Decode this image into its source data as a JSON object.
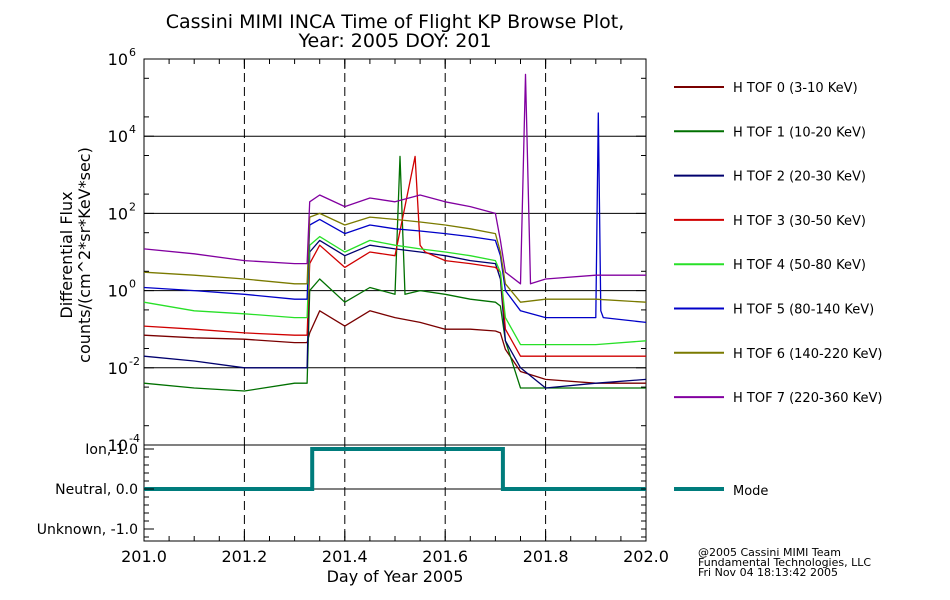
{
  "chart_data": [
    {
      "type": "line",
      "title": "Cassini MIMI INCA Time of Flight KP Browse Plot,",
      "subtitle": "Year: 2005 DOY: 201",
      "ylabel_line1": "Differential Flux",
      "ylabel_line2": "counts/(cm^2*sr*KeV*sec)",
      "yscale": "log",
      "ylim": [
        0.0001,
        1000000
      ],
      "ytick_exponents": [
        "6",
        "4",
        "2",
        "0",
        "-2",
        "-4"
      ],
      "ytick_base": "10",
      "xlim": [
        201.0,
        202.0
      ],
      "grid": "dashed verticals at 201.2, 201.4, 201.6, 201.8; solid horizontals at each decade",
      "series": [
        {
          "name": "H TOF 0 (3-10 KeV)",
          "color": "#7a0000",
          "x": [
            201.0,
            201.1,
            201.2,
            201.3,
            201.325,
            201.33,
            201.35,
            201.4,
            201.45,
            201.5,
            201.55,
            201.6,
            201.65,
            201.7,
            201.71,
            201.72,
            201.75,
            201.8,
            201.9,
            202.0
          ],
          "values": [
            0.07,
            0.06,
            0.055,
            0.045,
            0.045,
            0.08,
            0.3,
            0.12,
            0.3,
            0.2,
            0.15,
            0.1,
            0.1,
            0.09,
            0.08,
            0.03,
            0.008,
            0.005,
            0.004,
            0.004
          ]
        },
        {
          "name": "H TOF 1 (10-20 KeV)",
          "color": "#007000",
          "x": [
            201.0,
            201.1,
            201.2,
            201.3,
            201.325,
            201.33,
            201.35,
            201.4,
            201.45,
            201.5,
            201.51,
            201.52,
            201.55,
            201.6,
            201.65,
            201.7,
            201.71,
            201.72,
            201.75,
            201.8,
            201.9,
            202.0
          ],
          "values": [
            0.004,
            0.003,
            0.0025,
            0.004,
            0.004,
            1.0,
            2.0,
            0.5,
            1.2,
            0.8,
            3000,
            0.8,
            1.0,
            0.8,
            0.6,
            0.5,
            0.4,
            0.05,
            0.003,
            0.003,
            0.003,
            0.003
          ]
        },
        {
          "name": "H TOF 2 (20-30 KeV)",
          "color": "#00006e",
          "x": [
            201.0,
            201.1,
            201.2,
            201.3,
            201.325,
            201.33,
            201.35,
            201.4,
            201.45,
            201.5,
            201.55,
            201.6,
            201.65,
            201.7,
            201.71,
            201.72,
            201.75,
            201.8,
            201.9,
            202.0
          ],
          "values": [
            0.02,
            0.015,
            0.01,
            0.01,
            0.01,
            10,
            20,
            8,
            15,
            12,
            10,
            8,
            6,
            5,
            2,
            0.05,
            0.01,
            0.003,
            0.004,
            0.005
          ]
        },
        {
          "name": "H TOF 3 (30-50 KeV)",
          "color": "#d00000",
          "x": [
            201.0,
            201.1,
            201.2,
            201.3,
            201.325,
            201.33,
            201.35,
            201.4,
            201.45,
            201.5,
            201.54,
            201.55,
            201.56,
            201.6,
            201.65,
            201.7,
            201.71,
            201.72,
            201.75,
            201.8,
            201.9,
            202.0
          ],
          "values": [
            0.12,
            0.1,
            0.08,
            0.07,
            0.07,
            5,
            15,
            4,
            10,
            8,
            3000,
            15,
            10,
            6,
            5,
            4,
            3,
            0.1,
            0.02,
            0.02,
            0.02,
            0.02
          ]
        },
        {
          "name": "H TOF 4 (50-80 KeV)",
          "color": "#28e028",
          "x": [
            201.0,
            201.1,
            201.2,
            201.3,
            201.325,
            201.33,
            201.35,
            201.4,
            201.45,
            201.5,
            201.55,
            201.6,
            201.65,
            201.7,
            201.71,
            201.72,
            201.75,
            201.8,
            201.9,
            202.0
          ],
          "values": [
            0.5,
            0.3,
            0.25,
            0.2,
            0.2,
            15,
            25,
            10,
            20,
            15,
            12,
            10,
            8,
            6,
            3,
            0.2,
            0.04,
            0.04,
            0.04,
            0.05
          ]
        },
        {
          "name": "H TOF 5 (80-140 KeV)",
          "color": "#0000c8",
          "x": [
            201.0,
            201.1,
            201.2,
            201.3,
            201.325,
            201.33,
            201.35,
            201.4,
            201.45,
            201.5,
            201.55,
            201.6,
            201.65,
            201.7,
            201.71,
            201.72,
            201.75,
            201.8,
            201.9,
            201.905,
            201.91,
            201.915,
            202.0
          ],
          "values": [
            1.2,
            1.0,
            0.8,
            0.6,
            0.6,
            50,
            70,
            30,
            50,
            40,
            35,
            30,
            25,
            20,
            8,
            1.0,
            0.3,
            0.2,
            0.2,
            40000,
            0.3,
            0.2,
            0.15
          ]
        },
        {
          "name": "H TOF 6 (140-220 KeV)",
          "color": "#7a7a00",
          "x": [
            201.0,
            201.1,
            201.2,
            201.3,
            201.325,
            201.33,
            201.35,
            201.4,
            201.45,
            201.5,
            201.55,
            201.6,
            201.65,
            201.7,
            201.71,
            201.72,
            201.75,
            201.8,
            201.9,
            202.0
          ],
          "values": [
            3,
            2.5,
            2,
            1.5,
            1.5,
            80,
            100,
            50,
            80,
            70,
            60,
            50,
            40,
            30,
            10,
            1.5,
            0.5,
            0.6,
            0.6,
            0.5
          ]
        },
        {
          "name": "H TOF 7 (220-360 KeV)",
          "color": "#8200a0",
          "x": [
            201.0,
            201.1,
            201.2,
            201.3,
            201.325,
            201.33,
            201.35,
            201.4,
            201.45,
            201.5,
            201.55,
            201.6,
            201.65,
            201.7,
            201.71,
            201.72,
            201.75,
            201.76,
            201.77,
            201.8,
            201.9,
            202.0
          ],
          "values": [
            12,
            9,
            6,
            5,
            5,
            200,
            300,
            150,
            250,
            200,
            300,
            200,
            150,
            100,
            20,
            3,
            1.5,
            400000,
            1.5,
            2,
            2.5,
            2.5
          ]
        }
      ]
    },
    {
      "type": "line",
      "yticks": [
        "Ion, 1.0",
        "Neutral, 0.0",
        "Unknown, -1.0"
      ],
      "ytick_values": [
        1.0,
        0.0,
        -1.0
      ],
      "ylim": [
        -1.3,
        1.1
      ],
      "xlabel": "Day of Year 2005",
      "xticks": [
        "201.0",
        "201.2",
        "201.4",
        "201.6",
        "201.8",
        "202.0"
      ],
      "xtick_values": [
        201.0,
        201.2,
        201.4,
        201.6,
        201.8,
        202.0
      ],
      "xlim": [
        201.0,
        202.0
      ],
      "series": [
        {
          "name": "Mode",
          "color": "#007c7c",
          "x": [
            201.0,
            201.335,
            201.335,
            201.715,
            201.715,
            202.0
          ],
          "values": [
            0,
            0,
            1,
            1,
            0,
            0
          ]
        }
      ]
    }
  ],
  "footer": {
    "line1": "@2005 Cassini MIMI Team",
    "line2": "Fundamental Technologies, LLC",
    "line3": "Fri Nov 04 18:13:42 2005"
  }
}
